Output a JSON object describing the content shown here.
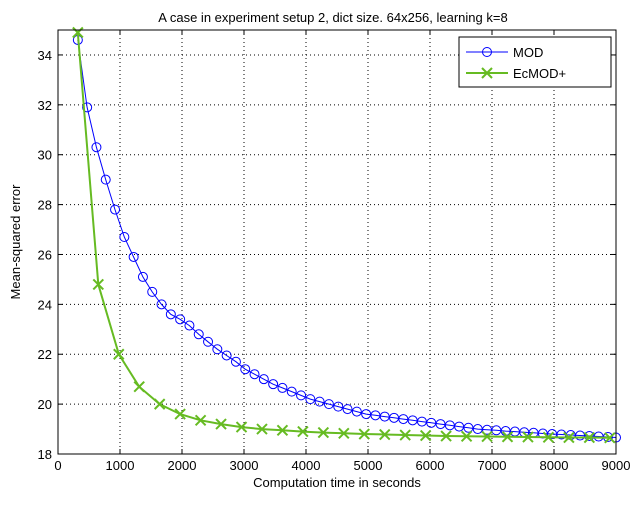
{
  "chart_data": {
    "type": "line",
    "title": "A case in experiment setup 2, dict size. 64x256, learning k=8",
    "xlabel": "Computation time in seconds",
    "ylabel": "Mean-squared error",
    "xlim": [
      0,
      9000
    ],
    "ylim": [
      18,
      35
    ],
    "xticks": [
      0,
      1000,
      2000,
      3000,
      4000,
      5000,
      6000,
      7000,
      8000,
      9000
    ],
    "yticks": [
      18,
      20,
      22,
      24,
      26,
      28,
      30,
      32,
      34
    ],
    "xtick_labels": [
      "0",
      "1000",
      "2000",
      "3000",
      "4000",
      "5000",
      "6000",
      "7000",
      "8000",
      "9000"
    ],
    "ytick_labels": [
      "18",
      "20",
      "22",
      "24",
      "26",
      "28",
      "30",
      "32",
      "34"
    ],
    "grid": true,
    "legend_position": "top-right",
    "series": [
      {
        "name": "MOD",
        "color": "#0000ff",
        "marker": "circle",
        "x": [
          320,
          470,
          620,
          770,
          920,
          1070,
          1220,
          1370,
          1520,
          1670,
          1820,
          1970,
          2120,
          2270,
          2420,
          2570,
          2720,
          2870,
          3020,
          3170,
          3320,
          3470,
          3620,
          3770,
          3920,
          4070,
          4220,
          4370,
          4520,
          4670,
          4820,
          4970,
          5120,
          5270,
          5420,
          5570,
          5720,
          5870,
          6020,
          6170,
          6320,
          6470,
          6620,
          6770,
          6920,
          7070,
          7220,
          7370,
          7520,
          7670,
          7820,
          7970,
          8120,
          8270,
          8420,
          8570,
          8720,
          8870,
          9000
        ],
        "y": [
          34.6,
          31.9,
          30.3,
          29.0,
          27.8,
          26.7,
          25.9,
          25.1,
          24.5,
          24.0,
          23.6,
          23.4,
          23.15,
          22.8,
          22.5,
          22.2,
          21.95,
          21.7,
          21.4,
          21.2,
          21.0,
          20.8,
          20.65,
          20.5,
          20.35,
          20.2,
          20.1,
          20.0,
          19.9,
          19.8,
          19.7,
          19.6,
          19.55,
          19.5,
          19.45,
          19.4,
          19.35,
          19.3,
          19.25,
          19.2,
          19.15,
          19.1,
          19.05,
          19.0,
          18.97,
          18.95,
          18.92,
          18.9,
          18.87,
          18.85,
          18.82,
          18.8,
          18.78,
          18.76,
          18.74,
          18.72,
          18.7,
          18.68,
          18.66
        ]
      },
      {
        "name": "EcMOD+",
        "color": "#66bb22",
        "marker": "x",
        "x": [
          320,
          650,
          980,
          1310,
          1640,
          1970,
          2300,
          2630,
          2960,
          3290,
          3620,
          3950,
          4280,
          4610,
          4940,
          5270,
          5600,
          5930,
          6260,
          6590,
          6920,
          7250,
          7580,
          7910,
          8240,
          8570,
          8900
        ],
        "y": [
          34.9,
          24.8,
          22.0,
          20.7,
          20.0,
          19.6,
          19.35,
          19.2,
          19.08,
          19.0,
          18.95,
          18.9,
          18.86,
          18.83,
          18.8,
          18.78,
          18.76,
          18.74,
          18.72,
          18.71,
          18.7,
          18.69,
          18.68,
          18.67,
          18.66,
          18.66,
          18.65
        ]
      }
    ]
  }
}
